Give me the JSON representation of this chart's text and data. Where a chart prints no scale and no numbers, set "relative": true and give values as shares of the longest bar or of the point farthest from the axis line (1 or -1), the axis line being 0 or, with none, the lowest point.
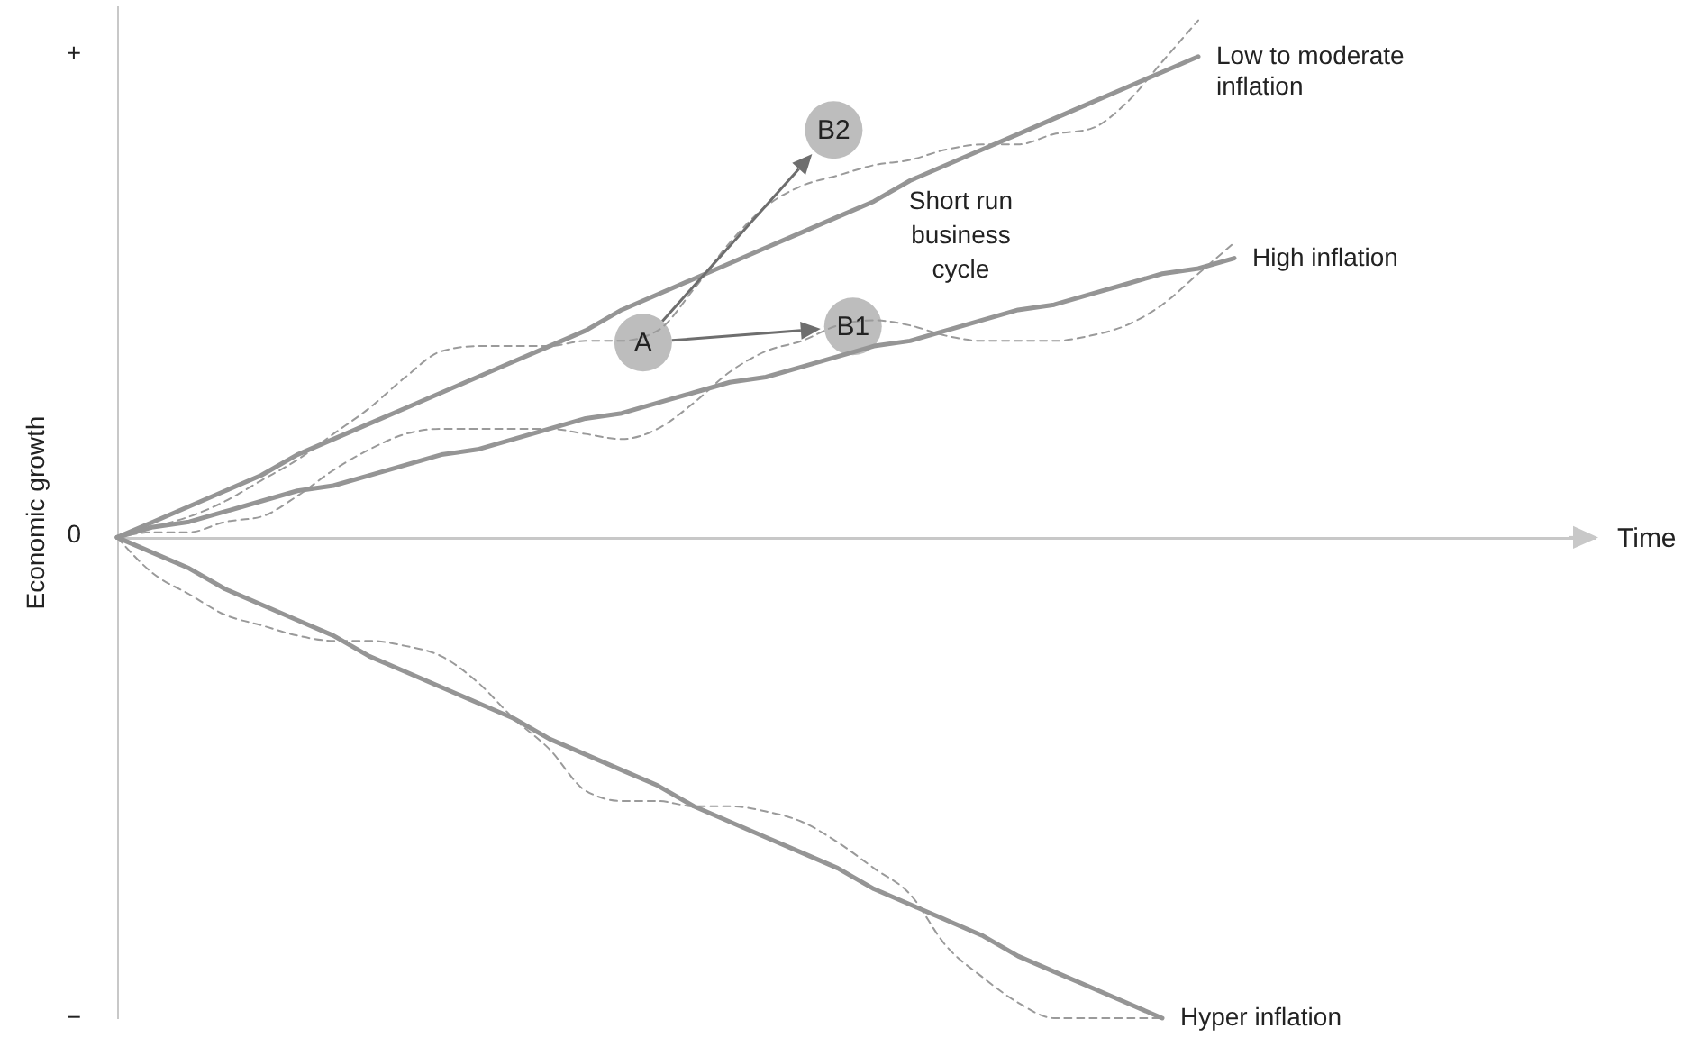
{
  "chart_data": {
    "type": "line",
    "xlabel": "Time",
    "ylabel": "Economic growth",
    "relative": true,
    "categories": [
      null,
      null,
      null,
      null,
      null,
      null,
      null,
      null,
      null,
      null,
      null,
      null,
      null,
      null,
      null,
      null,
      null,
      null,
      null,
      null,
      null,
      null,
      null,
      null,
      null,
      null,
      null,
      null,
      null,
      null,
      null,
      null,
      null,
      null,
      null,
      null,
      null,
      null,
      null,
      null,
      null,
      null
    ],
    "annotations": [
      "Short run business cycle",
      "+",
      "0",
      "−",
      "A",
      "B1",
      "B2"
    ],
    "series": [
      {
        "line_style": "dashed",
        "color": "#9a9a9a",
        "values": [
          0,
          0.02,
          0.04,
          0.07,
          0.11,
          0.15,
          0.2,
          0.25,
          0.31,
          0.36,
          0.37,
          0.37,
          0.37,
          0.38,
          0.38,
          0.4,
          0.48,
          0.57,
          0.64,
          0.68,
          0.7,
          0.72,
          0.73,
          0.75,
          0.76,
          0.76,
          0.78,
          0.79,
          0.84,
          0.92,
          1,
          null,
          null,
          null,
          null,
          null,
          null,
          null,
          null,
          null,
          null,
          null
        ]
      },
      {
        "line_style": "dashed",
        "color": "#9a9a9a",
        "values": [
          0,
          0.01,
          0.01,
          0.03,
          0.04,
          0.08,
          0.13,
          0.17,
          0.2,
          0.21,
          0.21,
          0.21,
          0.21,
          0.2,
          0.19,
          0.21,
          0.26,
          0.32,
          0.36,
          0.38,
          0.41,
          0.42,
          0.41,
          0.39,
          0.38,
          0.38,
          0.38,
          0.39,
          0.41,
          0.45,
          0.51,
          0.57,
          null,
          null,
          null,
          null,
          null,
          null,
          null,
          null,
          null,
          null
        ]
      },
      {
        "line_style": "dashed",
        "color": "#9a9a9a",
        "values": [
          0,
          -0.07,
          -0.11,
          -0.15,
          -0.17,
          -0.19,
          -0.2,
          -0.2,
          -0.21,
          -0.23,
          -0.28,
          -0.35,
          -0.41,
          -0.49,
          -0.51,
          -0.51,
          -0.52,
          -0.52,
          -0.53,
          -0.55,
          -0.59,
          -0.64,
          -0.69,
          -0.79,
          -0.85,
          -0.9,
          -0.93,
          -0.93,
          -0.93,
          -0.93,
          null,
          null,
          null,
          null,
          null,
          null,
          null,
          null,
          null,
          null,
          null,
          null
        ]
      },
      {
        "line_style": "solid",
        "name": "Low to moderate inflation",
        "color": "#959595",
        "values": [
          0,
          0.03,
          0.06,
          0.09,
          0.12,
          0.16,
          0.19,
          0.22,
          0.25,
          0.28,
          0.31,
          0.34,
          0.37,
          0.4,
          0.44,
          0.47,
          0.5,
          0.53,
          0.56,
          0.59,
          0.62,
          0.65,
          0.69,
          0.72,
          0.75,
          0.78,
          0.81,
          0.84,
          0.87,
          0.9,
          0.93,
          null,
          null,
          null,
          null,
          null,
          null,
          null,
          null,
          null,
          null,
          null
        ]
      },
      {
        "line_style": "solid",
        "name": "High inflation",
        "color": "#959595",
        "values": [
          0,
          0.02,
          0.03,
          0.05,
          0.07,
          0.09,
          0.1,
          0.12,
          0.14,
          0.16,
          0.17,
          0.19,
          0.21,
          0.23,
          0.24,
          0.26,
          0.28,
          0.3,
          0.31,
          0.33,
          0.35,
          0.37,
          0.38,
          0.4,
          0.42,
          0.44,
          0.45,
          0.47,
          0.49,
          0.51,
          0.52,
          0.54,
          null,
          null,
          null,
          null,
          null,
          null,
          null,
          null,
          null,
          null
        ]
      },
      {
        "line_style": "solid",
        "name": "Hyper inflation",
        "color": "#959595",
        "values": [
          0,
          -0.03,
          -0.06,
          -0.1,
          -0.13,
          -0.16,
          -0.19,
          -0.23,
          -0.26,
          -0.29,
          -0.32,
          -0.35,
          -0.39,
          -0.42,
          -0.45,
          -0.48,
          -0.52,
          -0.55,
          -0.58,
          -0.61,
          -0.64,
          -0.68,
          -0.71,
          -0.74,
          -0.77,
          -0.81,
          -0.84,
          -0.87,
          -0.9,
          -0.93,
          null,
          null,
          null,
          null,
          null,
          null,
          null,
          null,
          null,
          null,
          null,
          null
        ]
      }
    ]
  }
}
